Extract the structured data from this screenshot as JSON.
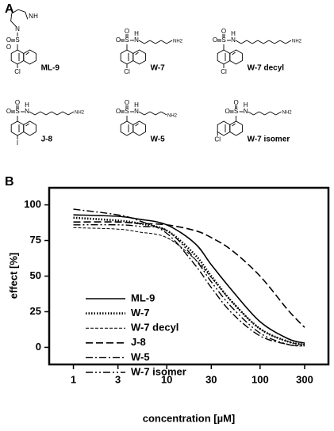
{
  "panel_a": {
    "label": "A",
    "group_labels": {
      "oxygen": "O",
      "sulfur": "S",
      "nitrogen": "N",
      "hydrogen": "H"
    },
    "compounds": [
      {
        "name": "ML-9",
        "halogen": "Cl"
      },
      {
        "name": "W-7",
        "halogen": "Cl",
        "amine": "NH2"
      },
      {
        "name": "W-7 decyl",
        "halogen": "Cl",
        "amine": "NH2"
      },
      {
        "name": "J-8",
        "halogen": "I",
        "amine": "NH2"
      },
      {
        "name": "W-5",
        "amine": "NH2"
      },
      {
        "name": "W-7 isomer",
        "halogen": "Cl",
        "amine": "NH2"
      }
    ]
  },
  "chart_data": {
    "type": "line",
    "panel_label": "B",
    "x_label": "concentration [µM]",
    "y_label": "effect [%]",
    "log_x": true,
    "xlim": [
      0.55,
      540
    ],
    "ylim": [
      -12,
      112
    ],
    "xticks": [
      1,
      3,
      10,
      30,
      100,
      300
    ],
    "yticks": [
      0,
      25,
      50,
      75,
      100
    ],
    "legend": "lower left",
    "x": [
      1,
      3,
      5,
      10,
      20,
      30,
      50,
      100,
      200,
      300
    ],
    "series": [
      {
        "name": "ML-9",
        "color": "#000000",
        "dash": "none",
        "width": 1.6,
        "values": [
          93,
          92,
          90,
          86,
          73,
          58,
          40,
          18,
          6,
          3
        ]
      },
      {
        "name": "W-7",
        "color": "#000000",
        "dash": "1.5 2",
        "width": 2.6,
        "values": [
          91,
          89,
          87,
          82,
          65,
          50,
          32,
          13,
          4,
          2
        ]
      },
      {
        "name": "W-7 decyl",
        "color": "#000000",
        "dash": "4 2",
        "width": 1,
        "values": [
          84,
          83,
          81,
          77,
          62,
          49,
          32,
          13,
          4,
          2
        ]
      },
      {
        "name": "J-8",
        "color": "#000000",
        "dash": "9 4",
        "width": 1.6,
        "values": [
          88,
          88,
          87,
          86,
          82,
          77,
          68,
          50,
          26,
          14
        ]
      },
      {
        "name": "W-5",
        "color": "#000000",
        "dash": "9 3 2 3",
        "width": 1.4,
        "values": [
          97,
          93,
          89,
          80,
          58,
          42,
          24,
          8,
          2,
          1
        ]
      },
      {
        "name": "W-7 isomer",
        "color": "#000000",
        "dash": "9 3 2 3 2 3",
        "width": 1.4,
        "values": [
          86,
          86,
          85,
          82,
          62,
          46,
          28,
          10,
          2,
          1
        ]
      }
    ]
  }
}
